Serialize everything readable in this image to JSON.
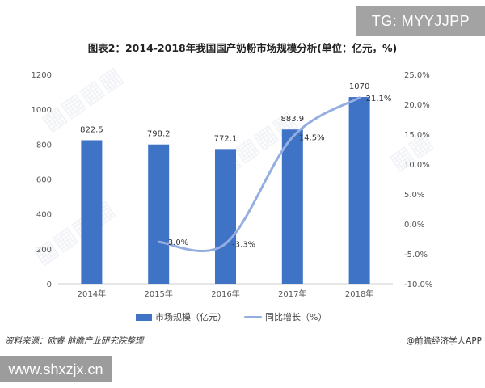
{
  "badge": {
    "text": "TG: MYYJJPP"
  },
  "chart_data": {
    "type": "bar",
    "title": "图表2：2014-2018年我国国产奶粉市场规模分析(单位：亿元，%)",
    "categories": [
      "2014年",
      "2015年",
      "2016年",
      "2017年",
      "2018年"
    ],
    "series": [
      {
        "name": "市场规模（亿元）",
        "type": "bar",
        "axis": "left",
        "color": "#3f73c6",
        "values": [
          822.5,
          798.2,
          772.1,
          883.9,
          1070
        ],
        "labels": [
          "822.5",
          "798.2",
          "772.1",
          "883.9",
          "1070"
        ]
      },
      {
        "name": "同比增长（%）",
        "type": "line",
        "axis": "right",
        "color": "#95aee2",
        "values": [
          null,
          -3.0,
          -3.3,
          14.5,
          21.1
        ],
        "labels": [
          "",
          "-3.0%",
          "-3.3%",
          "14.5%",
          "21.1%"
        ]
      }
    ],
    "yleft": {
      "lim": [
        0,
        1200
      ],
      "ticks": [
        "0",
        "200",
        "400",
        "600",
        "800",
        "1000",
        "1200"
      ]
    },
    "yright": {
      "lim": [
        -10,
        25
      ],
      "ticks": [
        "-10.0%",
        "-5.0%",
        "0.0%",
        "5.0%",
        "10.0%",
        "15.0%",
        "20.0%",
        "25.0%"
      ]
    },
    "grid": false,
    "legend": "bottom"
  },
  "source": "资料来源：欧睿 前瞻产业研究院整理",
  "credit": "@前瞻经济学人APP",
  "site": "www.shxzjx.cn"
}
